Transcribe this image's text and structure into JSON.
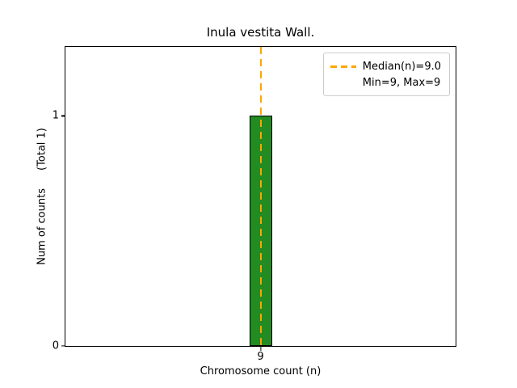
{
  "chart_data": {
    "type": "bar",
    "title": "Inula vestita Wall.",
    "xlabel": "Chromosome count (n)",
    "ylabel": "Num of counts",
    "ylabel_total": "(Total 1)",
    "categories": [
      9
    ],
    "values": [
      1
    ],
    "bar_color": "#228B22",
    "bar_edge_color": "#000000",
    "xlim": [
      8.4,
      9.6
    ],
    "ylim": [
      0,
      1.3
    ],
    "yticks": [
      0,
      1
    ],
    "xticks": [
      9
    ],
    "grid": false,
    "median_line": {
      "x": 9,
      "color": "#FFA500",
      "style": "dashed"
    },
    "legend": {
      "position": "upper right",
      "entries": [
        {
          "label": "Median(n)=9.0",
          "sample": "dashed",
          "color": "#FFA500"
        },
        {
          "label": "Min=9, Max=9",
          "sample": "none",
          "color": ""
        }
      ]
    }
  }
}
